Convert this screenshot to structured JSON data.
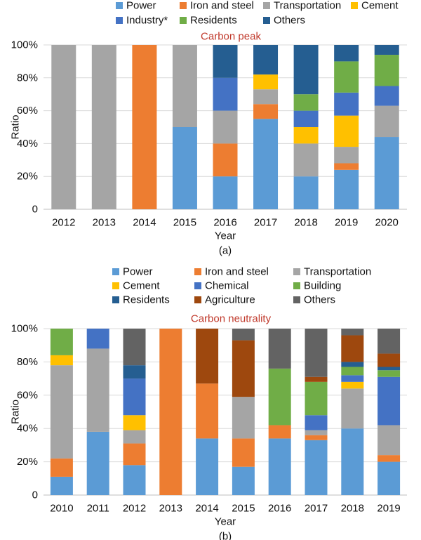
{
  "chart_data": [
    {
      "type": "bar",
      "stacked": true,
      "panel_label": "(a)",
      "title": "Carbon peak",
      "xlabel": "Year",
      "ylabel": "Ratio",
      "ylim": [
        0,
        100
      ],
      "yticks": [
        "0",
        "20%",
        "40%",
        "60%",
        "80%",
        "100%"
      ],
      "categories": [
        "2012",
        "2013",
        "2014",
        "2015",
        "2016",
        "2017",
        "2018",
        "2019",
        "2020"
      ],
      "legend_position": "top",
      "series": [
        {
          "name": "Power",
          "color": "#5b9bd5",
          "values": [
            0,
            0,
            0,
            50,
            20,
            55,
            20,
            24,
            44
          ]
        },
        {
          "name": "Iron and steel",
          "color": "#ed7d31",
          "values": [
            0,
            0,
            100,
            0,
            20,
            9,
            0,
            4,
            0
          ]
        },
        {
          "name": "Transportation",
          "color": "#a5a5a5",
          "values": [
            100,
            100,
            0,
            50,
            20,
            9,
            20,
            10,
            19
          ]
        },
        {
          "name": "Cement",
          "color": "#ffc000",
          "values": [
            0,
            0,
            0,
            0,
            0,
            9,
            10,
            19,
            0
          ]
        },
        {
          "name": "Industry*",
          "color": "#4472c4",
          "values": [
            0,
            0,
            0,
            0,
            20,
            0,
            10,
            14,
            12
          ]
        },
        {
          "name": "Residents",
          "color": "#70ad47",
          "values": [
            0,
            0,
            0,
            0,
            0,
            0,
            10,
            19,
            19
          ]
        },
        {
          "name": "Others",
          "color": "#255e91",
          "values": [
            0,
            0,
            0,
            0,
            20,
            18,
            30,
            10,
            6
          ]
        }
      ]
    },
    {
      "type": "bar",
      "stacked": true,
      "panel_label": "(b)",
      "title": "Carbon neutrality",
      "xlabel": "Year",
      "ylabel": "Ratio",
      "ylim": [
        0,
        100
      ],
      "yticks": [
        "0",
        "20%",
        "40%",
        "60%",
        "80%",
        "100%"
      ],
      "categories": [
        "2010",
        "2011",
        "2012",
        "2013",
        "2014",
        "2015",
        "2016",
        "2017",
        "2018",
        "2019"
      ],
      "legend_position": "top",
      "series": [
        {
          "name": "Power",
          "color": "#5b9bd5",
          "values": [
            11,
            38,
            18,
            0,
            34,
            17,
            34,
            33,
            40,
            20
          ]
        },
        {
          "name": "Iron and steel",
          "color": "#ed7d31",
          "values": [
            11,
            0,
            13,
            100,
            33,
            17,
            8,
            3,
            0,
            4
          ]
        },
        {
          "name": "Transportation",
          "color": "#a5a5a5",
          "values": [
            56,
            50,
            8,
            0,
            0,
            25,
            0,
            3,
            24,
            18
          ]
        },
        {
          "name": "Cement",
          "color": "#ffc000",
          "values": [
            6,
            0,
            9,
            0,
            0,
            0,
            0,
            0,
            4,
            0
          ]
        },
        {
          "name": "Chemical",
          "color": "#4472c4",
          "values": [
            0,
            12,
            22,
            0,
            0,
            0,
            0,
            9,
            4,
            29
          ]
        },
        {
          "name": "Building",
          "color": "#70ad47",
          "values": [
            16,
            0,
            0,
            0,
            0,
            0,
            34,
            20,
            5,
            4
          ]
        },
        {
          "name": "Residents",
          "color": "#255e91",
          "values": [
            0,
            0,
            8,
            0,
            0,
            0,
            0,
            0,
            3,
            2
          ]
        },
        {
          "name": "Agriculture",
          "color": "#9e480e",
          "values": [
            0,
            0,
            0,
            0,
            33,
            34,
            0,
            3,
            16,
            8
          ]
        },
        {
          "name": "Others",
          "color": "#636363",
          "values": [
            0,
            0,
            22,
            0,
            0,
            7,
            24,
            29,
            4,
            15
          ]
        }
      ]
    }
  ]
}
